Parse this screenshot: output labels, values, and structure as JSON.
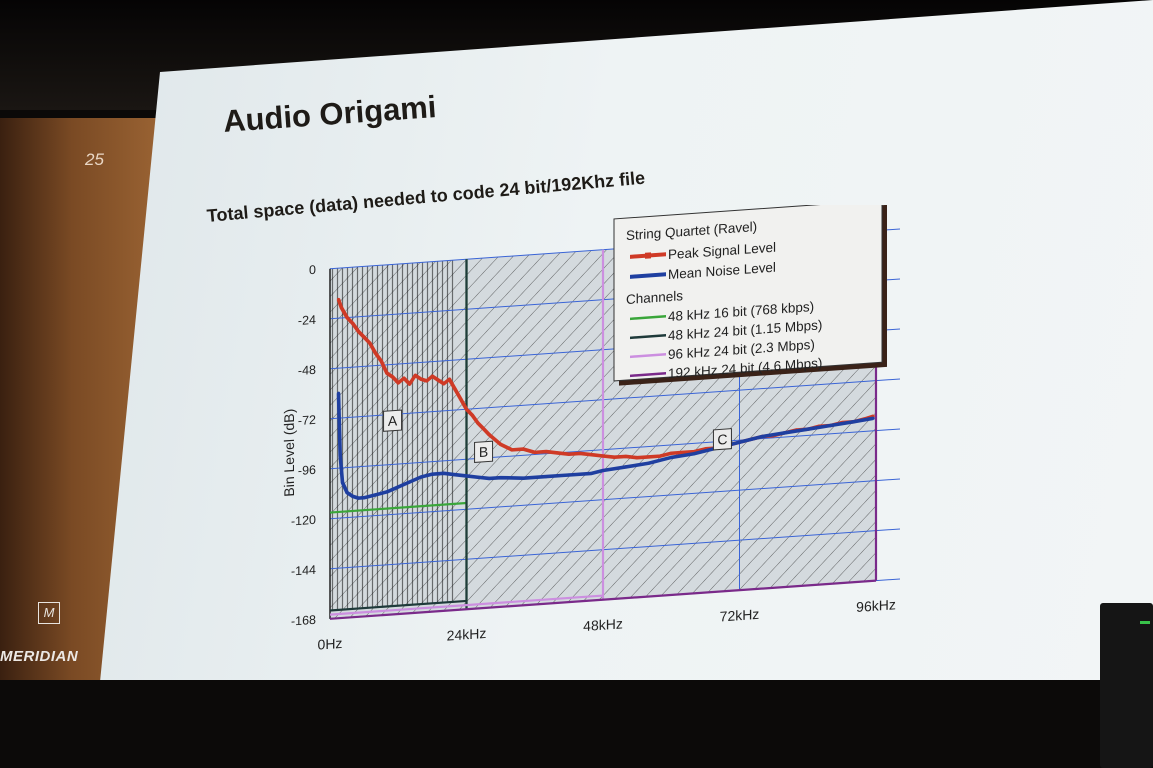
{
  "slide": {
    "number": "25",
    "title": "Audio Origami",
    "subtitle": "Total space (data) needed to code 24 bit/192Khz file",
    "logo_text": "MERIDIAN"
  },
  "colors": {
    "peak": "#cf3a26",
    "noise": "#1f3fa0",
    "ch48k16": "#3aa63a",
    "ch48k24": "#1f3a3a",
    "ch96k24": "#cc8fe0",
    "ch192k24": "#7a2a8a",
    "grid": "#3a64d6"
  },
  "chart_data": {
    "type": "line",
    "title": "",
    "xlabel": "",
    "ylabel": "Bin Level (dB)",
    "xlim": [
      0,
      96
    ],
    "ylim": [
      -168,
      0
    ],
    "x_unit": "kHz",
    "xticks": [
      "0Hz",
      "24kHz",
      "48kHz",
      "72kHz",
      "96kHz"
    ],
    "yticks": [
      "0",
      "-24",
      "-48",
      "-72",
      "-96",
      "-120",
      "-144",
      "-168"
    ],
    "legend": {
      "placement": "top-right",
      "heading": "String Quartet (Ravel)",
      "channels_heading": "Channels"
    },
    "series": [
      {
        "name": "Peak Signal Level",
        "color_key": "peak",
        "x": [
          1.5,
          2,
          3,
          4,
          5,
          6,
          7,
          8,
          9,
          10,
          11,
          12,
          13,
          14,
          15,
          16,
          17,
          18,
          19,
          20,
          21,
          22,
          23,
          24,
          25,
          26,
          27,
          28,
          30,
          32,
          34,
          36,
          38,
          40,
          42,
          44,
          46,
          48,
          50,
          52,
          54,
          56,
          58,
          60,
          62,
          64,
          66,
          68,
          70,
          72,
          74,
          76,
          78,
          80,
          82,
          84,
          86,
          88,
          90,
          92,
          94,
          95.5
        ],
        "y": [
          -15,
          -19,
          -24,
          -27,
          -31,
          -34,
          -37,
          -42,
          -46,
          -52,
          -54,
          -57,
          -55,
          -58,
          -54,
          -56,
          -57,
          -55,
          -57,
          -59,
          -57,
          -62,
          -67,
          -72,
          -75,
          -79,
          -82,
          -85,
          -90,
          -93,
          -93,
          -95,
          -95,
          -96,
          -97,
          -97,
          -98,
          -99,
          -100,
          -100,
          -101,
          -101,
          -101,
          -100,
          -100,
          -100,
          -99,
          -99,
          -98,
          -97,
          -96,
          -95,
          -95,
          -94,
          -93,
          -93,
          -92,
          -92,
          -91,
          -91,
          -90,
          -89
        ]
      },
      {
        "name": "Mean Noise Level",
        "color_key": "noise",
        "x": [
          1.5,
          1.8,
          2.2,
          3,
          4,
          5,
          6,
          8,
          10,
          12,
          14,
          16,
          18,
          20,
          22,
          24,
          26,
          28,
          30,
          34,
          38,
          42,
          46,
          48,
          52,
          56,
          60,
          64,
          68,
          72,
          76,
          80,
          84,
          88,
          92,
          95.5
        ],
        "y": [
          -60,
          -90,
          -103,
          -108,
          -110,
          -111,
          -111,
          -110,
          -109,
          -107,
          -105,
          -103,
          -102,
          -102,
          -103,
          -104,
          -105,
          -106,
          -106,
          -107,
          -107,
          -107,
          -107,
          -106,
          -105,
          -104,
          -102,
          -101,
          -99,
          -97,
          -95,
          -94,
          -93,
          -92,
          -91,
          -90
        ]
      }
    ],
    "channels": [
      {
        "label": "48 kHz 16 bit (768 kbps)",
        "color_key": "ch48k16",
        "fs_khz": 24,
        "floor_db": -117
      },
      {
        "label": "48 kHz 24 bit (1.15 Mbps)",
        "color_key": "ch48k24",
        "fs_khz": 24,
        "floor_db": -164
      },
      {
        "label": "96 kHz 24 bit (2.3 Mbps)",
        "color_key": "ch96k24",
        "fs_khz": 48,
        "floor_db": -166
      },
      {
        "label": "192 kHz 24 bit (4.6 Mbps)",
        "color_key": "ch192k24",
        "fs_khz": 96,
        "floor_db": -168
      }
    ],
    "region_labels": [
      {
        "text": "A",
        "x": 11,
        "y": -75
      },
      {
        "text": "B",
        "x": 27,
        "y": -93
      },
      {
        "text": "C",
        "x": 69,
        "y": -95
      }
    ]
  }
}
